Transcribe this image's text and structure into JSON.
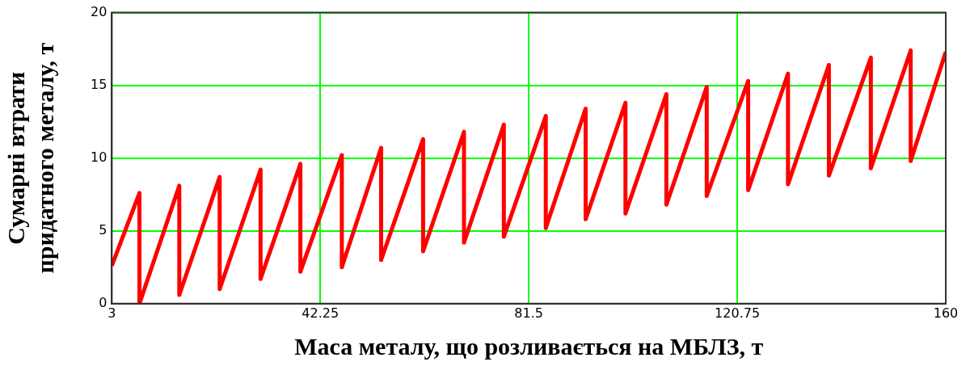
{
  "chart_data": {
    "type": "line",
    "xlabel": "Маса металу, що розливається на МБЛЗ, т",
    "ylabel": "Сумарні втрати\nпридатного металу, т",
    "x": [
      3,
      8.2,
      8.2,
      15.7,
      15.7,
      23.3,
      23.3,
      31.0,
      31.0,
      38.5,
      38.5,
      46.3,
      46.3,
      53.7,
      53.7,
      61.6,
      61.6,
      69.3,
      69.3,
      76.8,
      76.8,
      84.7,
      84.7,
      92.2,
      92.2,
      99.7,
      99.7,
      107.4,
      107.4,
      115.0,
      115.0,
      122.8,
      122.8,
      130.3,
      130.3,
      138.0,
      138.0,
      145.9,
      145.9,
      153.4,
      153.4,
      160
    ],
    "series": [
      {
        "color": "#ff0000",
        "values": [
          2.6,
          7.6,
          0,
          8.1,
          0.6,
          8.7,
          1.0,
          9.2,
          1.7,
          9.6,
          2.2,
          10.2,
          2.5,
          10.7,
          3.0,
          11.3,
          3.6,
          11.8,
          4.2,
          12.3,
          4.6,
          12.9,
          5.2,
          13.4,
          5.8,
          13.8,
          6.2,
          14.4,
          6.8,
          14.9,
          7.4,
          15.3,
          7.8,
          15.8,
          8.2,
          16.4,
          8.8,
          16.9,
          9.3,
          17.4,
          9.8,
          17.3
        ]
      }
    ],
    "xlim": [
      3,
      160
    ],
    "xticks": [
      3,
      42.25,
      81.5,
      120.75,
      160
    ],
    "ylim": [
      0,
      20
    ],
    "yticks": [
      0,
      5,
      10,
      15,
      20
    ],
    "grid": true,
    "legend": false,
    "marker": "none",
    "line_style": "solid"
  }
}
